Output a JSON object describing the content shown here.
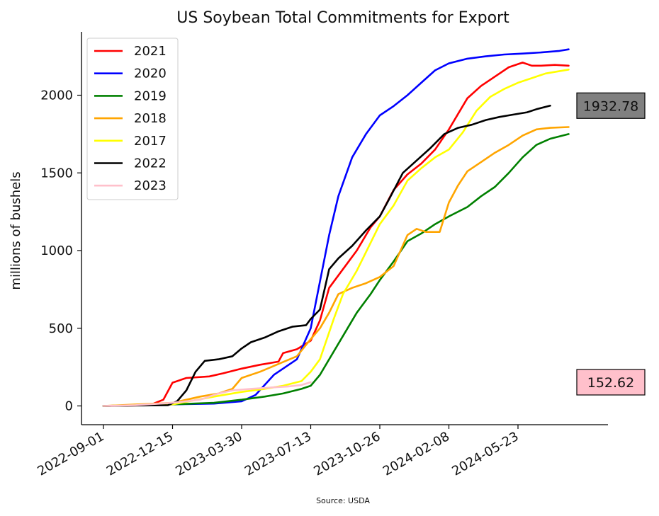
{
  "chart_data": {
    "type": "line",
    "title": "US Soybean Total Commitments for Export",
    "ylabel": "millions of bushels",
    "xlabel": "",
    "source": "Source: USDA",
    "ylim": [
      -115,
      2440
    ],
    "yticks": [
      0,
      500,
      1000,
      1500,
      2000
    ],
    "x_dates": [
      "2022-09-01",
      "2022-12-15",
      "2023-03-30",
      "2023-07-13",
      "2023-10-26",
      "2024-02-08",
      "2024-05-23"
    ],
    "legend_position": "upper left",
    "grid": false,
    "series": [
      {
        "name": "2021",
        "color": "#ff0000",
        "points": [
          [
            "2022-09-01",
            0
          ],
          [
            "2022-11-10",
            5
          ],
          [
            "2022-12-01",
            40
          ],
          [
            "2022-12-15",
            150
          ],
          [
            "2023-01-05",
            180
          ],
          [
            "2023-02-09",
            190
          ],
          [
            "2023-03-02",
            210
          ],
          [
            "2023-03-30",
            240
          ],
          [
            "2023-04-27",
            265
          ],
          [
            "2023-05-25",
            285
          ],
          [
            "2023-06-01",
            340
          ],
          [
            "2023-06-22",
            365
          ],
          [
            "2023-07-13",
            420
          ],
          [
            "2023-07-27",
            550
          ],
          [
            "2023-08-10",
            760
          ],
          [
            "2023-08-31",
            880
          ],
          [
            "2023-09-21",
            1000
          ],
          [
            "2023-10-12",
            1150
          ],
          [
            "2023-10-26",
            1220
          ],
          [
            "2023-11-16",
            1390
          ],
          [
            "2023-12-07",
            1490
          ],
          [
            "2023-12-28",
            1560
          ],
          [
            "2024-01-18",
            1650
          ],
          [
            "2024-02-08",
            1780
          ],
          [
            "2024-02-22",
            1880
          ],
          [
            "2024-03-07",
            1980
          ],
          [
            "2024-03-28",
            2060
          ],
          [
            "2024-04-18",
            2120
          ],
          [
            "2024-05-09",
            2180
          ],
          [
            "2024-05-30",
            2210
          ],
          [
            "2024-06-13",
            2190
          ],
          [
            "2024-06-27",
            2190
          ],
          [
            "2024-07-18",
            2195
          ],
          [
            "2024-08-08",
            2190
          ]
        ]
      },
      {
        "name": "2020",
        "color": "#0000ff",
        "points": [
          [
            "2022-09-01",
            0
          ],
          [
            "2022-12-15",
            10
          ],
          [
            "2023-02-16",
            15
          ],
          [
            "2023-03-30",
            30
          ],
          [
            "2023-04-20",
            70
          ],
          [
            "2023-05-18",
            200
          ],
          [
            "2023-06-22",
            300
          ],
          [
            "2023-07-13",
            500
          ],
          [
            "2023-07-27",
            800
          ],
          [
            "2023-08-10",
            1100
          ],
          [
            "2023-08-24",
            1350
          ],
          [
            "2023-09-14",
            1600
          ],
          [
            "2023-10-05",
            1750
          ],
          [
            "2023-10-26",
            1870
          ],
          [
            "2023-11-16",
            1930
          ],
          [
            "2023-12-07",
            2000
          ],
          [
            "2023-12-28",
            2080
          ],
          [
            "2024-01-18",
            2160
          ],
          [
            "2024-02-08",
            2205
          ],
          [
            "2024-03-07",
            2235
          ],
          [
            "2024-04-04",
            2250
          ],
          [
            "2024-05-02",
            2262
          ],
          [
            "2024-05-30",
            2268
          ],
          [
            "2024-06-27",
            2275
          ],
          [
            "2024-07-25",
            2285
          ],
          [
            "2024-08-08",
            2295
          ]
        ]
      },
      {
        "name": "2019",
        "color": "#008000",
        "points": [
          [
            "2022-09-01",
            0
          ],
          [
            "2022-12-15",
            10
          ],
          [
            "2023-02-16",
            20
          ],
          [
            "2023-03-30",
            40
          ],
          [
            "2023-05-04",
            60
          ],
          [
            "2023-06-01",
            80
          ],
          [
            "2023-06-29",
            110
          ],
          [
            "2023-07-13",
            130
          ],
          [
            "2023-07-27",
            200
          ],
          [
            "2023-08-10",
            300
          ],
          [
            "2023-08-31",
            450
          ],
          [
            "2023-09-21",
            600
          ],
          [
            "2023-10-12",
            720
          ],
          [
            "2023-10-26",
            810
          ],
          [
            "2023-11-16",
            930
          ],
          [
            "2023-12-07",
            1060
          ],
          [
            "2023-12-28",
            1110
          ],
          [
            "2024-01-18",
            1170
          ],
          [
            "2024-02-08",
            1220
          ],
          [
            "2024-03-07",
            1280
          ],
          [
            "2024-03-28",
            1350
          ],
          [
            "2024-04-18",
            1410
          ],
          [
            "2024-05-09",
            1500
          ],
          [
            "2024-05-30",
            1600
          ],
          [
            "2024-06-20",
            1680
          ],
          [
            "2024-07-11",
            1720
          ],
          [
            "2024-08-08",
            1750
          ]
        ]
      },
      {
        "name": "2018",
        "color": "#ffa500",
        "points": [
          [
            "2022-09-01",
            0
          ],
          [
            "2022-12-15",
            20
          ],
          [
            "2023-01-26",
            60
          ],
          [
            "2023-02-23",
            80
          ],
          [
            "2023-03-16",
            110
          ],
          [
            "2023-03-30",
            180
          ],
          [
            "2023-04-27",
            220
          ],
          [
            "2023-05-25",
            270
          ],
          [
            "2023-06-22",
            320
          ],
          [
            "2023-07-13",
            430
          ],
          [
            "2023-07-27",
            500
          ],
          [
            "2023-08-10",
            600
          ],
          [
            "2023-08-24",
            720
          ],
          [
            "2023-09-14",
            760
          ],
          [
            "2023-10-05",
            790
          ],
          [
            "2023-10-26",
            830
          ],
          [
            "2023-11-16",
            900
          ],
          [
            "2023-12-07",
            1100
          ],
          [
            "2023-12-21",
            1140
          ],
          [
            "2024-01-04",
            1120
          ],
          [
            "2024-01-25",
            1120
          ],
          [
            "2024-02-08",
            1310
          ],
          [
            "2024-02-22",
            1420
          ],
          [
            "2024-03-07",
            1510
          ],
          [
            "2024-03-28",
            1570
          ],
          [
            "2024-04-18",
            1630
          ],
          [
            "2024-05-09",
            1680
          ],
          [
            "2024-05-30",
            1740
          ],
          [
            "2024-06-20",
            1780
          ],
          [
            "2024-07-11",
            1790
          ],
          [
            "2024-08-08",
            1795
          ]
        ]
      },
      {
        "name": "2017",
        "color": "#ffff00",
        "points": [
          [
            "2022-09-01",
            0
          ],
          [
            "2022-12-15",
            10
          ],
          [
            "2023-02-16",
            60
          ],
          [
            "2023-03-30",
            90
          ],
          [
            "2023-05-04",
            110
          ],
          [
            "2023-06-01",
            130
          ],
          [
            "2023-06-29",
            160
          ],
          [
            "2023-07-13",
            220
          ],
          [
            "2023-07-27",
            300
          ],
          [
            "2023-08-17",
            560
          ],
          [
            "2023-08-31",
            720
          ],
          [
            "2023-09-21",
            870
          ],
          [
            "2023-10-12",
            1050
          ],
          [
            "2023-10-26",
            1170
          ],
          [
            "2023-11-16",
            1290
          ],
          [
            "2023-12-07",
            1450
          ],
          [
            "2023-12-28",
            1530
          ],
          [
            "2024-01-18",
            1600
          ],
          [
            "2024-02-08",
            1650
          ],
          [
            "2024-02-29",
            1760
          ],
          [
            "2024-03-21",
            1900
          ],
          [
            "2024-04-11",
            1990
          ],
          [
            "2024-05-02",
            2040
          ],
          [
            "2024-05-23",
            2080
          ],
          [
            "2024-06-13",
            2110
          ],
          [
            "2024-07-04",
            2140
          ],
          [
            "2024-08-08",
            2165
          ]
        ]
      },
      {
        "name": "2022",
        "color": "#000000",
        "points": [
          [
            "2022-09-01",
            0
          ],
          [
            "2022-12-08",
            5
          ],
          [
            "2022-12-22",
            30
          ],
          [
            "2023-01-05",
            100
          ],
          [
            "2023-01-19",
            220
          ],
          [
            "2023-02-02",
            290
          ],
          [
            "2023-02-23",
            300
          ],
          [
            "2023-03-16",
            320
          ],
          [
            "2023-03-30",
            370
          ],
          [
            "2023-04-13",
            410
          ],
          [
            "2023-05-04",
            440
          ],
          [
            "2023-05-25",
            480
          ],
          [
            "2023-06-15",
            510
          ],
          [
            "2023-07-06",
            520
          ],
          [
            "2023-07-13",
            560
          ],
          [
            "2023-07-27",
            620
          ],
          [
            "2023-08-10",
            880
          ],
          [
            "2023-08-24",
            950
          ],
          [
            "2023-09-14",
            1030
          ],
          [
            "2023-10-05",
            1130
          ],
          [
            "2023-10-26",
            1220
          ],
          [
            "2023-11-09",
            1330
          ],
          [
            "2023-11-30",
            1500
          ],
          [
            "2023-12-21",
            1580
          ],
          [
            "2024-01-11",
            1660
          ],
          [
            "2024-02-01",
            1750
          ],
          [
            "2024-02-22",
            1790
          ],
          [
            "2024-03-14",
            1810
          ],
          [
            "2024-04-04",
            1840
          ],
          [
            "2024-04-25",
            1860
          ],
          [
            "2024-05-16",
            1875
          ],
          [
            "2024-06-06",
            1890
          ],
          [
            "2024-06-20",
            1910
          ],
          [
            "2024-07-11",
            1932.78
          ]
        ]
      },
      {
        "name": "2023",
        "color": "#ffc0cb",
        "points": [
          [
            "2022-09-01",
            0
          ],
          [
            "2022-10-20",
            5
          ],
          [
            "2022-12-15",
            20
          ],
          [
            "2023-01-26",
            40
          ],
          [
            "2023-02-23",
            80
          ],
          [
            "2023-03-16",
            100
          ],
          [
            "2023-04-13",
            110
          ],
          [
            "2023-05-18",
            120
          ],
          [
            "2023-06-08",
            125
          ],
          [
            "2023-06-29",
            135
          ],
          [
            "2023-07-13",
            152.62
          ]
        ]
      }
    ],
    "callouts": [
      {
        "text": "1932.78",
        "value": 1932.78,
        "background": "#808080"
      },
      {
        "text": "152.62",
        "value": 152.62,
        "background": "#ffc0cb"
      }
    ]
  }
}
